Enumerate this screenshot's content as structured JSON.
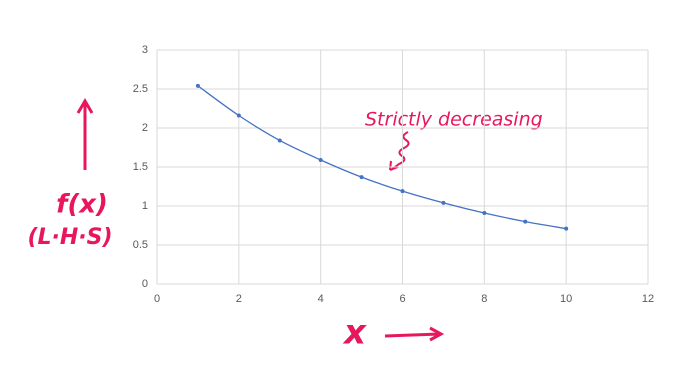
{
  "chart_data": {
    "type": "line",
    "x": [
      1,
      2,
      3,
      4,
      5,
      6,
      7,
      8,
      9,
      10
    ],
    "series": [
      {
        "color": "#4472c4",
        "values": [
          2.54,
          2.16,
          1.84,
          1.59,
          1.37,
          1.19,
          1.04,
          0.91,
          0.8,
          0.71
        ]
      }
    ],
    "xlim": [
      0,
      12
    ],
    "xticks": [
      0,
      2,
      4,
      6,
      8,
      10,
      12
    ],
    "ylim": [
      0,
      3
    ],
    "yticks": [
      0,
      0.5,
      1,
      1.5,
      2,
      2.5,
      3
    ],
    "grid": true,
    "xlabel": "x",
    "ylabel": "f(x)",
    "ylabel_note": "(L·H·S)",
    "annotation": "Strictly decreasing",
    "annotation_color": "#e8175d"
  }
}
